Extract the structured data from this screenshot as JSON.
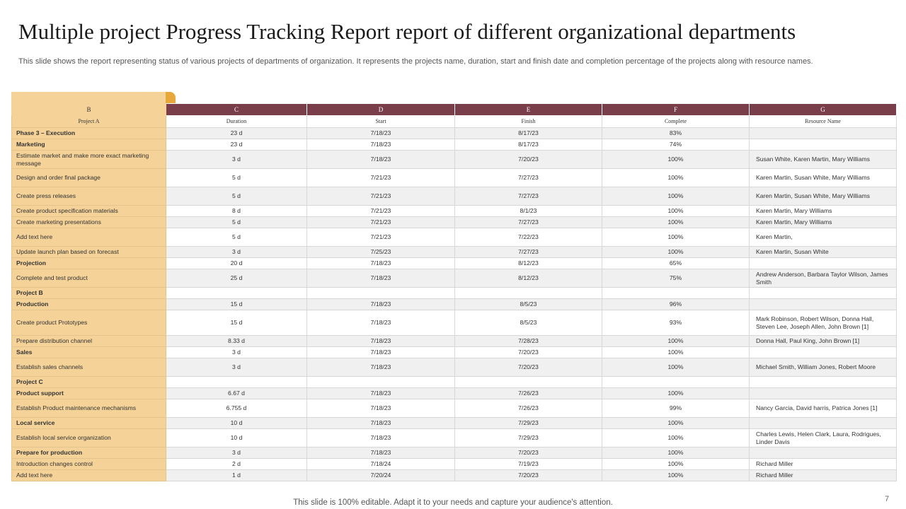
{
  "title": "Multiple project Progress Tracking Report report of different organizational departments",
  "subtitle": "This slide shows the report representing status of various projects of departments of organization. It represents the projects name, duration, start and finish date and completion percentage of the projects along with resource names.",
  "footer_text": "This slide is 100% editable. Adapt it to your needs and capture your audience's attention.",
  "page_number": "7",
  "colors": {
    "header_band": "#7a3e4b",
    "name_column": "#f4d298",
    "tab_accent": "#e6a83a"
  },
  "column_letters": [
    "B",
    "C",
    "D",
    "E",
    "F",
    "G"
  ],
  "column_headers": [
    "Project A",
    "Duration",
    "Start",
    "Finish",
    "Complete",
    "Resource Name"
  ],
  "rows": [
    {
      "name": "Phase 3 – Execution",
      "bold": true,
      "duration": "23 d",
      "start": "7/18/23",
      "finish": "8/17/23",
      "complete": "83%",
      "resources": "",
      "tall": false
    },
    {
      "name": "Marketing",
      "bold": true,
      "duration": "23 d",
      "start": "7/18/23",
      "finish": "8/17/23",
      "complete": "74%",
      "resources": "",
      "tall": false
    },
    {
      "name": "Estimate market and make more exact marketing message",
      "bold": false,
      "duration": "3 d",
      "start": "7/18/23",
      "finish": "7/20/23",
      "complete": "100%",
      "resources": "Susan White, Karen Martin, Mary Williams",
      "tall": true
    },
    {
      "name": "Design and order final package",
      "bold": false,
      "duration": "5 d",
      "start": "7/21/23",
      "finish": "7/27/23",
      "complete": "100%",
      "resources": "Karen Martin,  Susan White, Mary Williams",
      "tall": true
    },
    {
      "name": "Create press releases",
      "bold": false,
      "duration": "5 d",
      "start": "7/21/23",
      "finish": "7/27/23",
      "complete": "100%",
      "resources": "Karen Martin,  Susan White, Mary Williams",
      "tall": true
    },
    {
      "name": "Create product specification materials",
      "bold": false,
      "duration": "8 d",
      "start": "7/21/23",
      "finish": "8/1/23",
      "complete": "100%",
      "resources": "Karen Martin,  Mary Williams",
      "tall": false
    },
    {
      "name": "Create marketing presentations",
      "bold": false,
      "duration": "5 d",
      "start": "7/21/23",
      "finish": "7/27/23",
      "complete": "100%",
      "resources": "Karen Martin,  Mary Williams",
      "tall": false
    },
    {
      "name": "Add text here",
      "bold": false,
      "duration": "5 d",
      "start": "7/21/23",
      "finish": "7/22/23",
      "complete": "100%",
      "resources": "Karen Martin,",
      "tall": true
    },
    {
      "name": "Update launch plan based on forecast",
      "bold": false,
      "duration": "3 d",
      "start": "7/25/23",
      "finish": "7/27/23",
      "complete": "100%",
      "resources": "Karen Martin,  Susan White",
      "tall": false
    },
    {
      "name": "Projection",
      "bold": true,
      "duration": "20 d",
      "start": "7/18/23",
      "finish": "8/12/23",
      "complete": "65%",
      "resources": "",
      "tall": false
    },
    {
      "name": "Complete and  test product",
      "bold": false,
      "duration": "25 d",
      "start": "7/18/23",
      "finish": "8/12/23",
      "complete": "75%",
      "resources": "Andrew Anderson,  Barbara Taylor Wilson, James Smith",
      "tall": true
    },
    {
      "name": "Project B",
      "bold": true,
      "duration": "",
      "start": "",
      "finish": "",
      "complete": "",
      "resources": "",
      "tall": false
    },
    {
      "name": "Production",
      "bold": true,
      "duration": "15 d",
      "start": "7/18/23",
      "finish": "8/5/23",
      "complete": "96%",
      "resources": "",
      "tall": false
    },
    {
      "name": "Create product Prototypes",
      "bold": false,
      "duration": "15 d",
      "start": "7/18/23",
      "finish": "8/5/23",
      "complete": "93%",
      "resources": "Mark Robinson,  Robert Wilson,  Donna Hall, Steven Lee,  Joseph Allen,  John Brown [1]",
      "tall": "xl"
    },
    {
      "name": "Prepare distribution channel",
      "bold": false,
      "duration": "8.33 d",
      "start": "7/18/23",
      "finish": "7/28/23",
      "complete": "100%",
      "resources": "Donna Hall,  Paul King,  John Brown [1]",
      "tall": false
    },
    {
      "name": "Sales",
      "bold": true,
      "duration": "3 d",
      "start": "7/18/23",
      "finish": "7/20/23",
      "complete": "100%",
      "resources": "",
      "tall": false
    },
    {
      "name": "Establish sales channels",
      "bold": false,
      "duration": "3 d",
      "start": "7/18/23",
      "finish": "7/20/23",
      "complete": "100%",
      "resources": "Michael Smith,  William Jones,  Robert Moore",
      "tall": true
    },
    {
      "name": "Project C",
      "bold": true,
      "duration": "",
      "start": "",
      "finish": "",
      "complete": "",
      "resources": "",
      "tall": false
    },
    {
      "name": "Product support",
      "bold": true,
      "duration": "6.67 d",
      "start": "7/18/23",
      "finish": "7/26/23",
      "complete": "100%",
      "resources": "",
      "tall": false
    },
    {
      "name": "Establish Product maintenance mechanisms",
      "bold": false,
      "duration": "6.755 d",
      "start": "7/18/23",
      "finish": "7/26/23",
      "complete": "99%",
      "resources": "Nancy Garcia,  David harris,  Patrica Jones [1]",
      "tall": true
    },
    {
      "name": "Local service",
      "bold": true,
      "duration": "10 d",
      "start": "7/18/23",
      "finish": "7/29/23",
      "complete": "100%",
      "resources": "",
      "tall": false
    },
    {
      "name": "Establish local service organization",
      "bold": false,
      "duration": "10 d",
      "start": "7/18/23",
      "finish": "7/29/23",
      "complete": "100%",
      "resources": " Charles Lewis,  Helen Clark,  Laura, Rodrigues,  Linder Davis",
      "tall": true
    },
    {
      "name": "Prepare for production",
      "bold": true,
      "duration": "3 d",
      "start": "7/18/23",
      "finish": "7/20/23",
      "complete": "100%",
      "resources": "",
      "tall": false
    },
    {
      "name": "Introduction changes control",
      "bold": false,
      "duration": "2 d",
      "start": "7/18/24",
      "finish": "7/19/23",
      "complete": "100%",
      "resources": "Richard Miller",
      "tall": false
    },
    {
      "name": "Add text here",
      "bold": false,
      "duration": "1 d",
      "start": "7/20/24",
      "finish": "7/20/23",
      "complete": "100%",
      "resources": "Richard Miller",
      "tall": false
    }
  ]
}
